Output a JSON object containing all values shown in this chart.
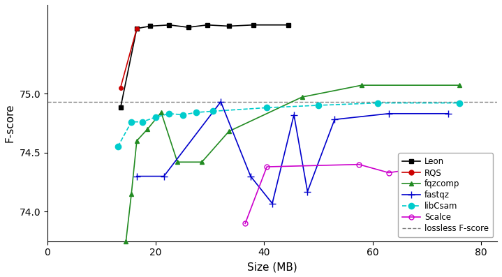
{
  "lossless_fscore": 74.93,
  "ylim": [
    73.75,
    75.75
  ],
  "xlim": [
    0,
    83
  ],
  "yticks": [
    74.0,
    74.5,
    75.0
  ],
  "xticks": [
    0,
    20,
    40,
    60,
    80
  ],
  "xlabel": "Size (MB)",
  "ylabel": "F-score",
  "Leon": {
    "x": [
      13.5,
      16.5,
      19.0,
      22.5,
      26.0,
      29.5,
      33.5,
      38.0,
      44.5
    ],
    "y": [
      74.88,
      75.55,
      75.57,
      75.58,
      75.56,
      75.58,
      75.57,
      75.58,
      75.58
    ],
    "color": "#000000",
    "marker": "s",
    "linestyle": "-",
    "markersize": 4,
    "linewidth": 1.2
  },
  "RQS": {
    "x": [
      13.5,
      16.5
    ],
    "y": [
      75.05,
      75.55
    ],
    "color": "#cc0000",
    "marker": "o",
    "linestyle": "-",
    "markersize": 4,
    "linewidth": 1.2
  },
  "fqzcomp": {
    "x": [
      14.5,
      15.5,
      16.5,
      18.5,
      21.0,
      24.0,
      28.5,
      33.5,
      47.0,
      58.0,
      76.0
    ],
    "y": [
      73.75,
      74.15,
      74.6,
      74.7,
      74.84,
      74.42,
      74.42,
      74.68,
      74.97,
      75.07,
      75.07
    ],
    "color": "#228B22",
    "marker": "^",
    "linestyle": "-",
    "markersize": 4,
    "linewidth": 1.2
  },
  "fastqz": {
    "x": [
      16.5,
      21.5,
      32.0,
      37.5,
      41.5,
      45.5,
      48.0,
      53.0,
      63.0,
      74.0
    ],
    "y": [
      74.3,
      74.3,
      74.93,
      74.3,
      74.07,
      74.82,
      74.17,
      74.78,
      74.83,
      74.83
    ],
    "color": "#0000cc",
    "marker": "+",
    "linestyle": "-",
    "markersize": 7,
    "linewidth": 1.2
  },
  "libCsam": {
    "x": [
      13.0,
      15.5,
      17.5,
      20.0,
      22.5,
      25.0,
      27.5,
      30.5,
      40.5,
      50.0,
      61.0,
      76.0
    ],
    "y": [
      74.55,
      74.76,
      74.76,
      74.8,
      74.83,
      74.82,
      74.84,
      74.85,
      74.88,
      74.9,
      74.92,
      74.92
    ],
    "color": "#00cccc",
    "marker": "o",
    "linestyle": "--",
    "markersize": 6,
    "linewidth": 1.2
  },
  "Scalce": {
    "x": [
      36.5,
      40.5,
      57.5,
      63.0,
      69.0,
      81.0
    ],
    "y": [
      73.9,
      74.38,
      74.4,
      74.33,
      74.37,
      74.45
    ],
    "color": "#cc00cc",
    "marker": "o",
    "linestyle": "-",
    "markersize": 5,
    "linewidth": 1.2,
    "markerfacecolor": "none"
  },
  "background": "#ffffff"
}
